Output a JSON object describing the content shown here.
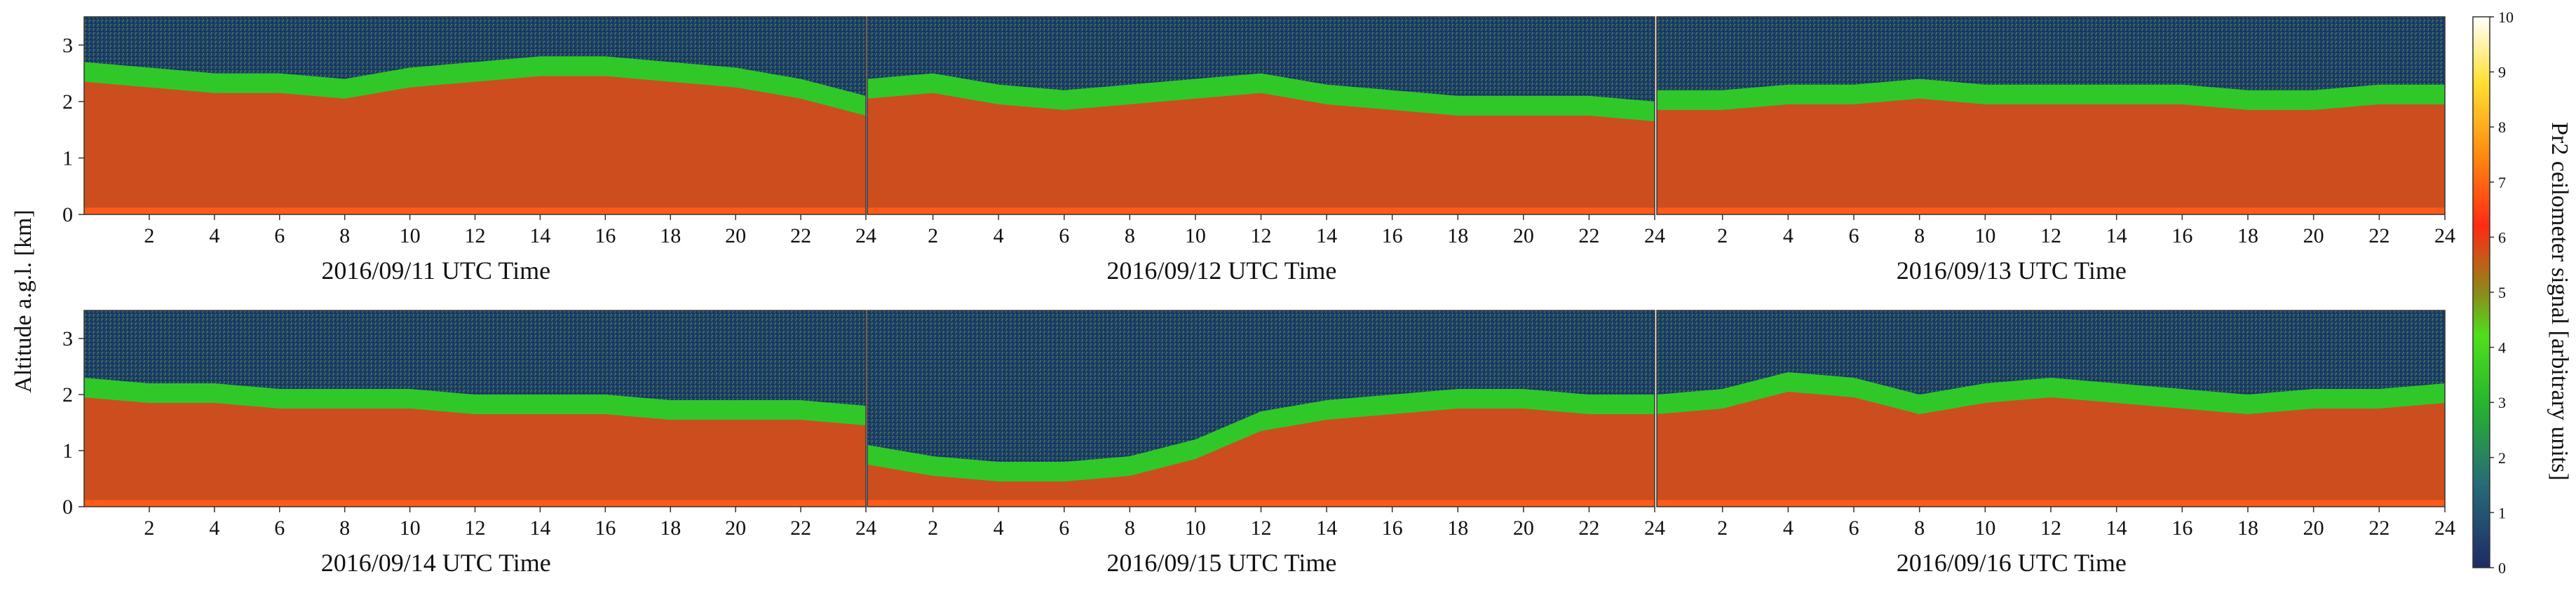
{
  "chart_data": {
    "type": "heatmap",
    "ylabel": "Altitude a.g.l. [km]",
    "colorbar": {
      "label": "Pr2 ceilometer signal [arbitrary units]",
      "range": [
        0,
        10
      ],
      "ticks": [
        "0",
        "1",
        "2",
        "3",
        "4",
        "5",
        "6",
        "7",
        "8",
        "9",
        "10"
      ],
      "colors": [
        "#1f2a66",
        "#27557c",
        "#2e8a6a",
        "#27b62c",
        "#4ee01c",
        "#8c8a1a",
        "#d8421e",
        "#ff2a14",
        "#ff8a10",
        "#ffe030",
        "#ffffff"
      ]
    },
    "y_ticks": [
      "0",
      "1",
      "2",
      "3"
    ],
    "ylim": [
      0,
      3.5
    ],
    "x_ticks": [
      "2",
      "4",
      "6",
      "8",
      "10",
      "12",
      "14",
      "16",
      "18",
      "20",
      "22",
      "24"
    ],
    "xlim": [
      0,
      24
    ],
    "panels": [
      {
        "xlabel": "2016/09/11  UTC Time",
        "boundary_layer_top_km": [
          2.7,
          2.6,
          2.5,
          2.5,
          2.4,
          2.6,
          2.7,
          2.8,
          2.8,
          2.7,
          2.6,
          2.4,
          2.1
        ]
      },
      {
        "xlabel": "2016/09/12  UTC Time",
        "boundary_layer_top_km": [
          2.4,
          2.5,
          2.3,
          2.2,
          2.3,
          2.4,
          2.5,
          2.3,
          2.2,
          2.1,
          2.1,
          2.1,
          2.0
        ]
      },
      {
        "xlabel": "2016/09/13  UTC Time",
        "boundary_layer_top_km": [
          2.2,
          2.2,
          2.3,
          2.3,
          2.4,
          2.3,
          2.3,
          2.3,
          2.3,
          2.2,
          2.2,
          2.3,
          2.3
        ]
      },
      {
        "xlabel": "2016/09/14  UTC Time",
        "boundary_layer_top_km": [
          2.3,
          2.2,
          2.2,
          2.1,
          2.1,
          2.1,
          2.0,
          2.0,
          2.0,
          1.9,
          1.9,
          1.9,
          1.8
        ]
      },
      {
        "xlabel": "2016/09/15  UTC Time",
        "boundary_layer_top_km": [
          1.1,
          0.9,
          0.8,
          0.8,
          0.9,
          1.2,
          1.7,
          1.9,
          2.0,
          2.1,
          2.1,
          2.0,
          2.0
        ]
      },
      {
        "xlabel": "2016/09/16  UTC Time",
        "boundary_layer_top_km": [
          2.0,
          2.1,
          2.4,
          2.3,
          2.0,
          2.2,
          2.3,
          2.2,
          2.1,
          2.0,
          2.1,
          2.1,
          2.2
        ]
      }
    ]
  }
}
